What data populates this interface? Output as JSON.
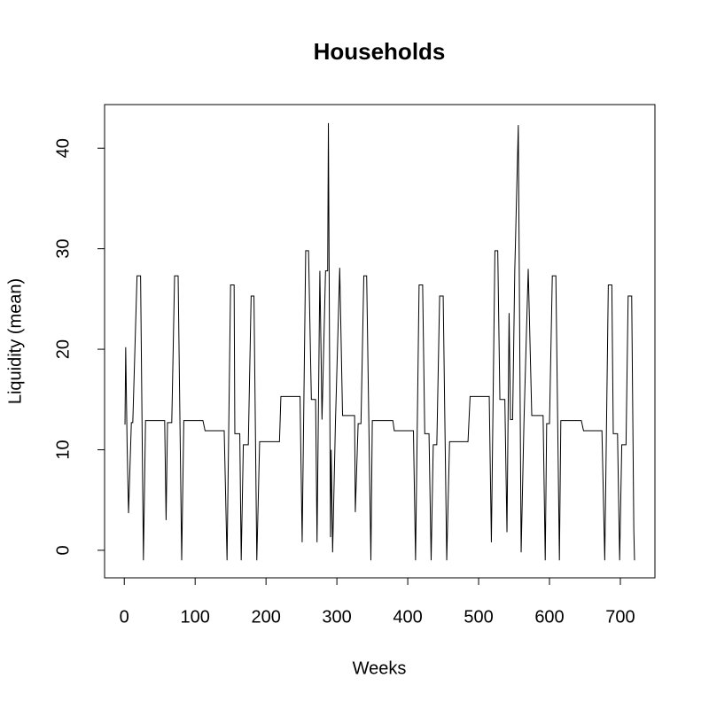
{
  "chart_data": {
    "type": "line",
    "title": "Households",
    "x_label": "Weeks",
    "y_label": "Liquidity (mean)",
    "x": [
      1,
      2,
      4,
      6,
      10,
      12,
      18,
      23,
      27,
      30,
      57,
      59,
      61,
      67,
      71,
      76,
      81,
      84,
      111,
      114,
      141,
      145,
      150,
      155,
      156,
      163,
      165,
      168,
      175,
      179,
      183,
      187,
      191,
      219,
      221,
      248,
      251,
      256,
      260,
      264,
      270,
      272,
      276,
      279,
      284,
      287,
      288,
      291,
      292,
      294,
      298,
      304,
      308,
      325,
      326,
      330,
      334,
      338,
      342,
      348,
      350,
      379,
      381,
      408,
      411,
      416,
      421,
      424,
      430,
      433,
      436,
      441,
      445,
      450,
      455,
      459,
      485,
      488,
      515,
      518,
      523,
      527,
      530,
      537,
      540,
      543,
      545,
      548,
      551,
      556,
      560,
      564,
      570,
      575,
      591,
      594,
      596,
      600,
      604,
      609,
      614,
      616,
      645,
      648,
      674,
      678,
      683,
      688,
      690,
      696,
      699,
      702,
      708,
      711,
      716,
      719,
      720
    ],
    "values": [
      12.5,
      20.2,
      10.5,
      3.7,
      12.7,
      12.7,
      27.3,
      27.3,
      -1,
      12.9,
      12.9,
      3,
      12.7,
      12.7,
      27.3,
      27.3,
      -1,
      12.9,
      12.9,
      11.9,
      11.9,
      -1,
      26.4,
      26.4,
      11.6,
      11.6,
      -1,
      10.5,
      10.5,
      25.3,
      25.3,
      -1,
      10.8,
      10.8,
      15.3,
      15.3,
      0.8,
      29.8,
      29.8,
      15,
      15,
      0.8,
      27.8,
      13,
      27.8,
      27.8,
      42.5,
      1.3,
      10,
      -0.2,
      12.8,
      28.1,
      13.4,
      13.4,
      3.8,
      12.6,
      12.6,
      27.3,
      27.3,
      -1,
      12.9,
      12.9,
      11.9,
      11.9,
      -1,
      26.4,
      26.4,
      11.6,
      11.6,
      -1,
      10.5,
      10.5,
      25.3,
      25.3,
      -1,
      10.8,
      10.8,
      15.3,
      15.3,
      0.8,
      29.8,
      29.8,
      15,
      15,
      1.8,
      23.6,
      13,
      13,
      27.8,
      42.3,
      -0.2,
      12.8,
      28,
      13.4,
      13.4,
      -1,
      12.6,
      12.6,
      27.3,
      27.3,
      -1,
      12.9,
      12.9,
      11.9,
      11.9,
      -1,
      26.4,
      26.4,
      11.6,
      11.6,
      -1,
      10.5,
      10.5,
      25.3,
      25.3,
      2,
      -1
    ],
    "color": "#000000",
    "xlim": [
      -27.8,
      748.8
    ],
    "xticks": [
      0,
      100,
      200,
      300,
      400,
      500,
      600,
      700
    ],
    "ylim": [
      -2.74,
      44.34
    ],
    "yticks": [
      0,
      10,
      20,
      30,
      40
    ]
  }
}
